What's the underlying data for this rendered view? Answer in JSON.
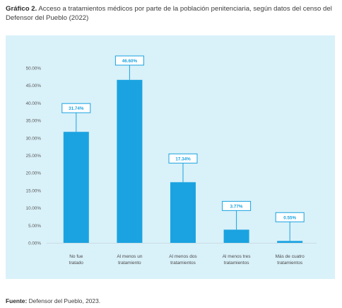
{
  "caption": {
    "lead": "Gráfico 2.",
    "text": " Acceso a tratamientos médicos por parte de la población penitenciaria, según datos del censo del Defensor del Pueblo (2022)"
  },
  "source": {
    "lead": "Fuente:",
    "text": " Defensor del Pueblo, 2023."
  },
  "colors": {
    "bar": "#1aa3e0",
    "panel": "#d9f1f9",
    "callout_border": "#1aa3e0",
    "callout_text": "#1aa3e0",
    "axis_text": "#5a5a5a",
    "baseline": "#c9dde6"
  },
  "chart_data": {
    "type": "bar",
    "categories": [
      [
        "No fue",
        "tratado"
      ],
      [
        "Al menos un",
        "tratamiento"
      ],
      [
        "Al menos dos",
        "tratamientos"
      ],
      [
        "Al menos tres",
        "tratamientos"
      ],
      [
        "Más de cuatro",
        "tratamientos"
      ]
    ],
    "values": [
      31.74,
      46.6,
      17.34,
      3.77,
      0.55
    ],
    "data_labels": [
      "31.74%",
      "46.60%",
      "17.34%",
      "3.77%",
      "0.55%"
    ],
    "y_ticks": [
      "0.00%",
      "5.00%",
      "10.00%",
      "15.00%",
      "20.00%",
      "25.00%",
      "30.00%",
      "35.00%",
      "40.00%",
      "45.00%",
      "50.00%"
    ],
    "ylim": [
      0,
      50
    ],
    "grid": false,
    "legend": "none"
  }
}
